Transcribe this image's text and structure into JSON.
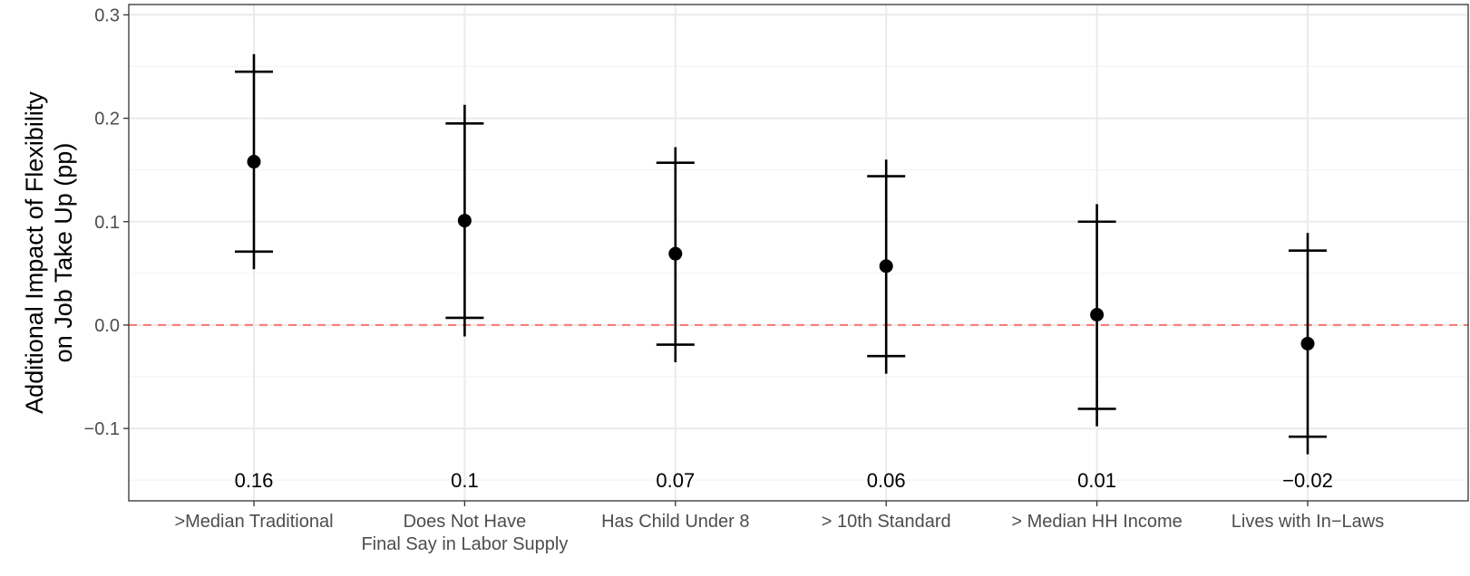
{
  "chart_data": {
    "type": "scatter",
    "title": "",
    "xlabel": "",
    "ylabel_lines": [
      "Additional Impact of Flexibility",
      "on Job Take Up (pp)"
    ],
    "ylim": [
      -0.17,
      0.31
    ],
    "yticks": [
      -0.1,
      0.0,
      0.1,
      0.2,
      0.3
    ],
    "ytick_labels": [
      "−0.1",
      "0.0",
      "0.1",
      "0.2",
      "0.3"
    ],
    "grid": true,
    "reference_line": {
      "y": 0.0,
      "style": "dashed",
      "color": "#f8766d"
    },
    "categories": [
      {
        "label_lines": [
          ">Median Traditional"
        ],
        "estimate": 0.158,
        "ci95": [
          0.054,
          0.262
        ],
        "ci90": [
          0.071,
          0.245
        ],
        "value_label": "0.16"
      },
      {
        "label_lines": [
          "Does Not Have",
          "Final Say in Labor Supply"
        ],
        "estimate": 0.101,
        "ci95": [
          -0.011,
          0.213
        ],
        "ci90": [
          0.007,
          0.195
        ],
        "value_label": "0.1"
      },
      {
        "label_lines": [
          "Has Child Under 8"
        ],
        "estimate": 0.069,
        "ci95": [
          -0.036,
          0.172
        ],
        "ci90": [
          -0.019,
          0.157
        ],
        "value_label": "0.07"
      },
      {
        "label_lines": [
          "> 10th Standard"
        ],
        "estimate": 0.057,
        "ci95": [
          -0.047,
          0.16
        ],
        "ci90": [
          -0.03,
          0.144
        ],
        "value_label": "0.06"
      },
      {
        "label_lines": [
          "> Median HH Income"
        ],
        "estimate": 0.01,
        "ci95": [
          -0.098,
          0.117
        ],
        "ci90": [
          -0.081,
          0.1
        ],
        "value_label": "0.01"
      },
      {
        "label_lines": [
          "Lives with In−Laws"
        ],
        "estimate": -0.018,
        "ci95": [
          -0.125,
          0.089
        ],
        "ci90": [
          -0.108,
          0.072
        ],
        "value_label": "−0.02"
      }
    ]
  }
}
